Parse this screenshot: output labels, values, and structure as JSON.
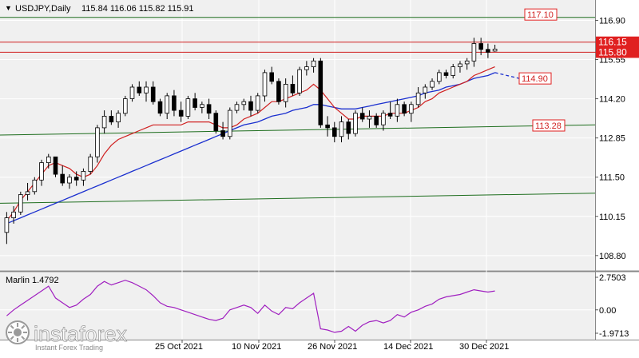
{
  "header": {
    "arrow_glyph": "▼",
    "symbol": "USDJPY,Daily",
    "ohlc": "115.84 116.06 115.82 115.91"
  },
  "indicator": {
    "title": "Marlin 1.4792",
    "axis_ticks": [
      "2.7503",
      "0.00",
      "-1.9713"
    ],
    "color": "#a020c0"
  },
  "watermark": {
    "brand": "instaforex",
    "tagline": "Instant Forex Trading"
  },
  "colors": {
    "background": "#f0f0f0",
    "bull_candle": "#ffffff",
    "bear_candle": "#000000",
    "fast_ma": "#d02020",
    "slow_ma": "#1a2fcf",
    "level_line": "#d02020",
    "channel_line": "#1e6e1e",
    "grid": "#ffffff"
  },
  "chart_data": {
    "type": "candlestick",
    "symbol": "USDJPY",
    "timeframe": "Daily",
    "y_ticks": [
      "116.90",
      "115.55",
      "114.20",
      "112.85",
      "111.50",
      "110.15",
      "108.80"
    ],
    "ylim": [
      108.3,
      117.6
    ],
    "x_tick_labels": [
      "25 Oct 2021",
      "10 Nov 2021",
      "26 Nov 2021",
      "14 Dec 2021",
      "30 Dec 2021"
    ],
    "price_labels": [
      {
        "text": "117.10",
        "value": 117.1,
        "style": "outline"
      },
      {
        "text": "116.15",
        "value": 116.15,
        "style": "filled"
      },
      {
        "text": "115.80",
        "value": 115.8,
        "style": "filled"
      },
      {
        "text": "114.90",
        "value": 114.9,
        "style": "outline"
      },
      {
        "text": "113.28",
        "value": 113.28,
        "style": "outline"
      }
    ],
    "horizontal_levels": [
      116.15,
      115.8
    ],
    "candles": [
      [
        109.6,
        110.3,
        109.2,
        110.1
      ],
      [
        110.1,
        110.5,
        109.9,
        110.3
      ],
      [
        110.3,
        111.0,
        110.2,
        110.9
      ],
      [
        110.9,
        111.3,
        110.7,
        111.0
      ],
      [
        111.0,
        111.5,
        110.9,
        111.4
      ],
      [
        111.4,
        112.1,
        111.2,
        112.0
      ],
      [
        112.0,
        112.3,
        111.8,
        112.2
      ],
      [
        112.2,
        112.2,
        111.5,
        111.6
      ],
      [
        111.6,
        111.9,
        111.2,
        111.3
      ],
      [
        111.3,
        111.6,
        111.1,
        111.5
      ],
      [
        111.5,
        111.7,
        111.2,
        111.4
      ],
      [
        111.4,
        111.8,
        111.2,
        111.7
      ],
      [
        111.7,
        112.3,
        111.6,
        112.2
      ],
      [
        112.2,
        113.3,
        112.0,
        113.2
      ],
      [
        113.2,
        113.8,
        113.0,
        113.6
      ],
      [
        113.6,
        113.8,
        113.3,
        113.4
      ],
      [
        113.4,
        113.8,
        113.2,
        113.7
      ],
      [
        113.7,
        114.3,
        113.6,
        114.2
      ],
      [
        114.2,
        114.7,
        114.1,
        114.6
      ],
      [
        114.6,
        114.8,
        114.3,
        114.4
      ],
      [
        114.4,
        114.8,
        114.1,
        114.6
      ],
      [
        114.6,
        114.8,
        114.0,
        114.1
      ],
      [
        114.1,
        114.2,
        113.6,
        113.7
      ],
      [
        113.7,
        114.4,
        113.5,
        114.3
      ],
      [
        114.3,
        114.5,
        113.6,
        113.8
      ],
      [
        113.8,
        114.1,
        113.4,
        113.6
      ],
      [
        113.6,
        114.3,
        113.5,
        114.2
      ],
      [
        114.2,
        114.4,
        113.8,
        113.9
      ],
      [
        113.9,
        114.1,
        113.7,
        114.0
      ],
      [
        114.0,
        114.2,
        113.5,
        113.7
      ],
      [
        113.7,
        113.8,
        113.0,
        113.1
      ],
      [
        113.1,
        113.4,
        112.8,
        112.9
      ],
      [
        112.9,
        113.9,
        112.8,
        113.8
      ],
      [
        113.8,
        114.1,
        113.7,
        114.0
      ],
      [
        114.0,
        114.2,
        113.8,
        114.1
      ],
      [
        114.1,
        114.3,
        113.6,
        113.8
      ],
      [
        113.8,
        114.4,
        113.7,
        114.3
      ],
      [
        114.3,
        115.2,
        114.1,
        115.1
      ],
      [
        115.1,
        115.3,
        114.7,
        114.8
      ],
      [
        114.8,
        114.9,
        114.0,
        114.1
      ],
      [
        114.1,
        114.9,
        113.9,
        114.7
      ],
      [
        114.7,
        115.0,
        114.3,
        114.4
      ],
      [
        114.4,
        115.3,
        114.3,
        115.2
      ],
      [
        115.2,
        115.5,
        115.0,
        115.3
      ],
      [
        115.3,
        115.6,
        115.1,
        115.5
      ],
      [
        115.5,
        115.6,
        113.2,
        113.3
      ],
      [
        113.3,
        113.6,
        112.9,
        113.2
      ],
      [
        113.2,
        113.4,
        112.7,
        112.9
      ],
      [
        112.9,
        113.6,
        112.7,
        113.4
      ],
      [
        113.4,
        113.5,
        112.8,
        113.0
      ],
      [
        113.0,
        113.8,
        112.9,
        113.7
      ],
      [
        113.7,
        113.9,
        113.4,
        113.5
      ],
      [
        113.5,
        113.8,
        113.2,
        113.6
      ],
      [
        113.6,
        113.7,
        113.2,
        113.3
      ],
      [
        113.3,
        113.8,
        113.1,
        113.7
      ],
      [
        113.7,
        114.1,
        113.5,
        113.6
      ],
      [
        113.6,
        114.2,
        113.4,
        114.0
      ],
      [
        114.0,
        114.1,
        113.6,
        113.7
      ],
      [
        113.7,
        114.1,
        113.4,
        114.0
      ],
      [
        114.0,
        114.6,
        113.9,
        114.4
      ],
      [
        114.4,
        114.7,
        114.2,
        114.6
      ],
      [
        114.6,
        114.9,
        114.5,
        114.8
      ],
      [
        114.8,
        115.2,
        114.7,
        115.1
      ],
      [
        115.1,
        115.2,
        114.9,
        115.0
      ],
      [
        115.0,
        115.4,
        114.9,
        115.3
      ],
      [
        115.3,
        115.5,
        115.1,
        115.4
      ],
      [
        115.4,
        115.6,
        115.2,
        115.5
      ],
      [
        115.5,
        116.3,
        115.3,
        116.1
      ],
      [
        116.1,
        116.3,
        115.7,
        115.9
      ],
      [
        115.9,
        116.1,
        115.6,
        115.8
      ],
      [
        115.84,
        116.06,
        115.82,
        115.91
      ]
    ],
    "ma_fast": {
      "color": "#d02020",
      "values": [
        110.0,
        110.3,
        110.7,
        111.0,
        111.3,
        111.6,
        111.9,
        112.0,
        111.9,
        111.8,
        111.6,
        111.5,
        111.6,
        111.9,
        112.3,
        112.6,
        112.8,
        112.9,
        113.0,
        113.1,
        113.2,
        113.3,
        113.3,
        113.3,
        113.3,
        113.3,
        113.4,
        113.4,
        113.4,
        113.4,
        113.3,
        113.2,
        113.2,
        113.3,
        113.5,
        113.6,
        113.7,
        113.9,
        114.1,
        114.1,
        114.2,
        114.3,
        114.4,
        114.5,
        114.7,
        114.5,
        114.2,
        113.9,
        113.7,
        113.5,
        113.5,
        113.6,
        113.6,
        113.6,
        113.6,
        113.7,
        113.7,
        113.7,
        113.8,
        113.9,
        114.1,
        114.2,
        114.4,
        114.5,
        114.6,
        114.7,
        114.8,
        115.0,
        115.1,
        115.2,
        115.3
      ]
    },
    "ma_slow": {
      "color": "#1a2fcf",
      "values": [
        109.9,
        110.0,
        110.1,
        110.2,
        110.3,
        110.4,
        110.5,
        110.6,
        110.7,
        110.8,
        110.9,
        111.0,
        111.1,
        111.2,
        111.3,
        111.4,
        111.5,
        111.6,
        111.7,
        111.8,
        111.9,
        112.0,
        112.1,
        112.2,
        112.3,
        112.4,
        112.5,
        112.6,
        112.7,
        112.8,
        112.9,
        113.0,
        113.1,
        113.2,
        113.3,
        113.35,
        113.4,
        113.5,
        113.6,
        113.65,
        113.7,
        113.8,
        113.85,
        113.9,
        114.0,
        114.0,
        113.95,
        113.9,
        113.85,
        113.85,
        113.85,
        113.9,
        113.95,
        114.0,
        114.05,
        114.1,
        114.15,
        114.2,
        114.25,
        114.3,
        114.4,
        114.45,
        114.5,
        114.6,
        114.65,
        114.7,
        114.8,
        114.9,
        114.95,
        115.0,
        115.1
      ],
      "projection_end": 114.9
    },
    "channel_lines": [
      {
        "start": 112.95,
        "end": 113.3
      },
      {
        "start": 110.6,
        "end": 110.95
      },
      {
        "start": 117.0,
        "end": 117.0
      }
    ],
    "oscillator": {
      "name": "Marlin",
      "ylim": [
        -1.9713,
        2.7503
      ],
      "values": [
        -0.5,
        0.0,
        0.4,
        0.8,
        1.2,
        1.6,
        2.0,
        1.0,
        0.6,
        0.2,
        0.4,
        0.9,
        1.3,
        2.0,
        2.4,
        2.1,
        2.3,
        2.5,
        2.3,
        2.0,
        1.7,
        1.2,
        0.6,
        0.3,
        0.2,
        0.0,
        -0.2,
        -0.4,
        -0.6,
        -0.8,
        -0.9,
        -0.7,
        0.0,
        0.2,
        0.4,
        0.2,
        -0.3,
        0.4,
        -0.1,
        -0.4,
        0.2,
        0.1,
        0.6,
        1.0,
        1.4,
        -1.6,
        -1.7,
        -1.9,
        -1.8,
        -1.4,
        -1.8,
        -1.3,
        -1.0,
        -0.9,
        -1.1,
        -0.9,
        -0.4,
        -0.6,
        -0.2,
        0.0,
        0.3,
        0.5,
        0.9,
        1.1,
        1.2,
        1.3,
        1.5,
        1.7,
        1.6,
        1.5,
        1.6
      ]
    }
  }
}
